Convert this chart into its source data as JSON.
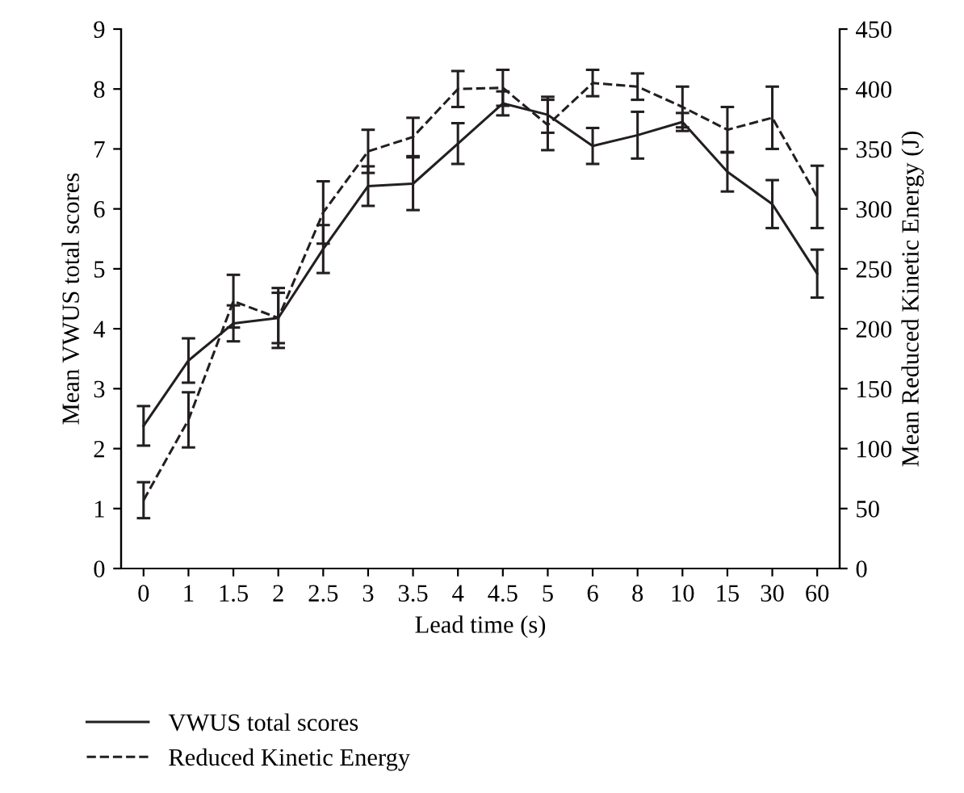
{
  "chart_data": {
    "type": "line",
    "xlabel": "Lead time (s)",
    "ylabel": "Mean VWUS total scores",
    "y2label": "Mean Reduced Kinetic Energy (J)",
    "categories": [
      "0",
      "1",
      "1.5",
      "2",
      "2.5",
      "3",
      "3.5",
      "4",
      "4.5",
      "5",
      "6",
      "8",
      "10",
      "15",
      "30",
      "60"
    ],
    "series": [
      {
        "name": "VWUS total scores",
        "color": "#231f20",
        "line_style": "solid",
        "values": [
          2.38,
          3.47,
          4.09,
          4.18,
          5.33,
          6.38,
          6.42,
          7.09,
          7.76,
          7.57,
          7.05,
          7.23,
          7.45,
          6.62,
          6.08,
          4.92
        ],
        "errors": [
          0.33,
          0.37,
          0.3,
          0.5,
          0.4,
          0.33,
          0.44,
          0.34,
          0.2,
          0.3,
          0.3,
          0.39,
          0.15,
          0.33,
          0.4,
          0.4
        ]
      },
      {
        "name": "Reduced Kinetic Energy",
        "color": "#231f20",
        "line_style": "dashed",
        "axis": "y2",
        "values": [
          57,
          124,
          223,
          209,
          297,
          348,
          360,
          400,
          401,
          370,
          405,
          402,
          385,
          366,
          376,
          310
        ],
        "errors": [
          15,
          23,
          22,
          21,
          26,
          18,
          16,
          15,
          15,
          21,
          11,
          11,
          17,
          19,
          26,
          26
        ]
      }
    ],
    "ylim": [
      0,
      9
    ],
    "yticks": [
      0,
      1,
      2,
      3,
      4,
      5,
      6,
      7,
      8,
      9
    ],
    "y2lim": [
      0,
      450
    ],
    "y2ticks": [
      0,
      50,
      100,
      150,
      200,
      250,
      300,
      350,
      400,
      450
    ],
    "grid": false,
    "legend": "bottom left",
    "marker": "none"
  }
}
